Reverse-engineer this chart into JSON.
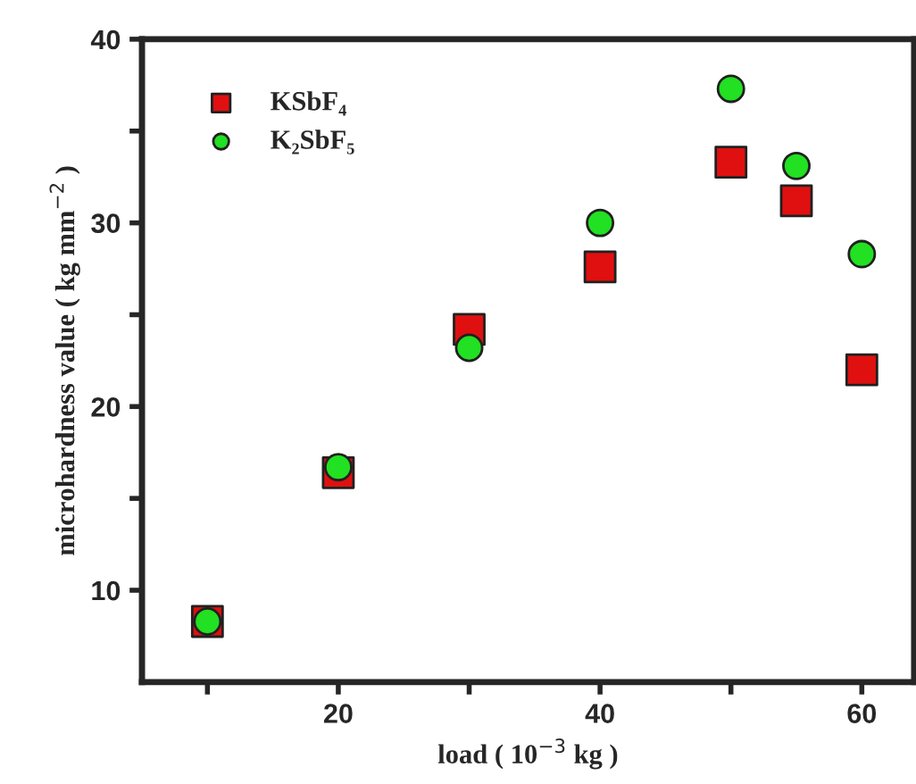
{
  "chart_data": {
    "type": "scatter",
    "xlabel": "load ( 10$^{−3}$ kg )",
    "ylabel": "microhardness value ( kg mm$^{−2}$ )",
    "x": [
      10,
      20,
      30,
      40,
      50,
      55,
      60
    ],
    "series": [
      {
        "name": "KSbF₄",
        "color": "#e01010",
        "marker": "square",
        "values": [
          8.3,
          16.4,
          24.2,
          27.6,
          33.3,
          31.2,
          22.0
        ]
      },
      {
        "name": "K₂SbF₅",
        "color": "#22e022",
        "marker": "circle",
        "values": [
          8.3,
          16.7,
          23.2,
          30.0,
          37.3,
          33.1,
          28.3
        ]
      }
    ],
    "xlim": [
      5,
      64
    ],
    "ylim": [
      5,
      40
    ],
    "xticks": [
      {
        "value": 10,
        "label": null
      },
      20,
      {
        "value": 30,
        "label": null
      },
      40,
      {
        "value": 50,
        "label": null
      },
      60
    ],
    "yticks": [
      10,
      {
        "value": 15,
        "label": null
      },
      20,
      {
        "value": 25,
        "label": null
      },
      30,
      {
        "value": 35,
        "label": null
      },
      40
    ],
    "legend": "top left",
    "grid": false
  }
}
